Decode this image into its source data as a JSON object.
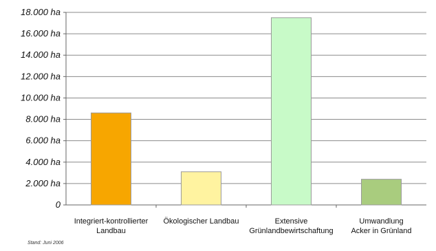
{
  "chart_data": {
    "type": "bar",
    "categories": [
      [
        "Integriert-kontrollierter",
        "Landbau"
      ],
      [
        "Ökologischer Landbau"
      ],
      [
        "Extensive",
        "Grünlandbewirtschaftung"
      ],
      [
        "Umwandlung",
        "Acker in Grünland"
      ]
    ],
    "values": [
      8600,
      3100,
      17500,
      2400
    ],
    "colors": [
      "#F7A600",
      "#FFF3A0",
      "#C8FAC8",
      "#A9CC7E"
    ],
    "ylim": [
      0,
      18000
    ],
    "ytick_values": [
      0,
      2000,
      4000,
      6000,
      8000,
      10000,
      12000,
      14000,
      16000,
      18000
    ],
    "ytick_labels": [
      "0",
      "2.000 ha",
      "4.000 ha",
      "6.000 ha",
      "8.000 ha",
      "10.000 ha",
      "12.000 ha",
      "14.000 ha",
      "16.000 ha",
      "18.000 ha"
    ],
    "grid": true,
    "title": "",
    "xlabel": "",
    "ylabel": ""
  },
  "footnote": "Stand: Juni 2006"
}
